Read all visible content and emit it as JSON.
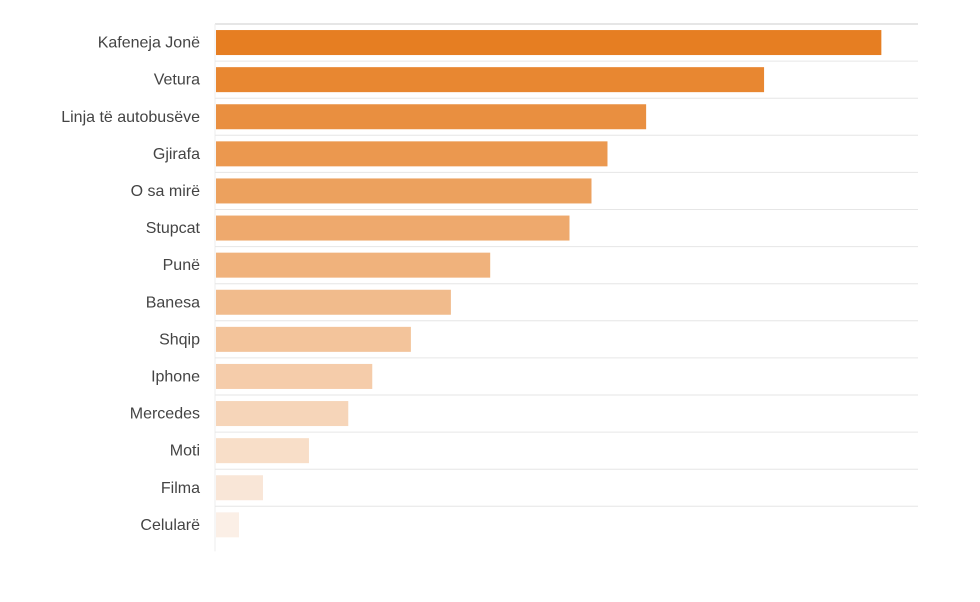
{
  "chart_data": {
    "type": "bar",
    "orientation": "horizontal",
    "title": "",
    "xlabel": "",
    "ylabel": "",
    "categories": [
      "Kafeneja Jonë",
      "Vetura",
      "Linja të autobusëve",
      "Gjirafa",
      "O sa mirë",
      "Stupcat",
      "Punë",
      "Banesa",
      "Shqip",
      "Iphone",
      "Mercedes",
      "Moti",
      "Filma",
      "Celularë"
    ],
    "values": [
      100,
      82.4,
      64.7,
      58.9,
      56.5,
      53.2,
      41.3,
      35.4,
      29.4,
      23.6,
      20.0,
      14.1,
      7.2,
      3.6
    ],
    "value_scale": "relative (max = 100), no axis values printed",
    "xlim": [
      0,
      105.5
    ],
    "grid": "horizontal row separators",
    "colors": {
      "max": "#e67e22",
      "min": "#fbefe6",
      "grid": "#e6e6e6",
      "axis": "#cccccc",
      "label": "#444444"
    }
  }
}
